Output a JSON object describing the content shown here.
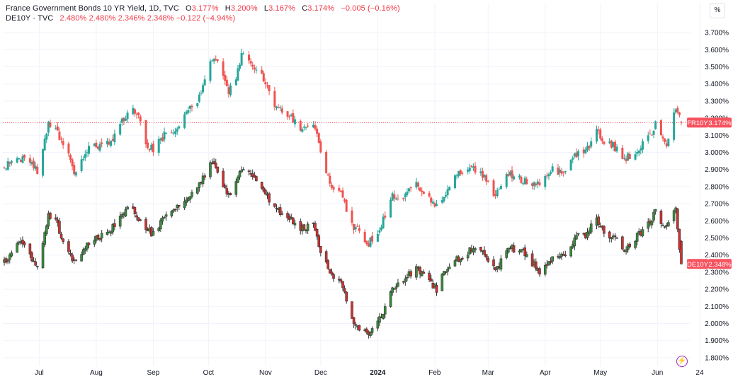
{
  "legend": {
    "series1_name": "France Government Bonds 10 YR Yield, 1D, TVC",
    "series1_ohlc": [
      {
        "k": "O",
        "v": "3.177%"
      },
      {
        "k": "H",
        "v": "3.200%"
      },
      {
        "k": "L",
        "v": "3.167%"
      },
      {
        "k": "C",
        "v": "3.174%"
      }
    ],
    "series1_change": "−0.005 (−0.16%)",
    "series2_name": "DE10Y · TVC",
    "series2_values": "2.480%  2.480%  2.346%  2.348%  −0.122 (−4.94%)"
  },
  "controls": {
    "percent_label": "%",
    "bolt_icon": "lightning-icon"
  },
  "colors": {
    "up": "#26a69a",
    "down": "#ef5350",
    "grid": "#f0f3fa",
    "axis_text": "#131722",
    "price_line": "#f7525f"
  },
  "chart_data": {
    "type": "candlestick",
    "y_axis": {
      "min": 1.75,
      "max": 3.75,
      "ticks": [
        "1.800%",
        "1.900%",
        "2.000%",
        "2.100%",
        "2.200%",
        "2.300%",
        "2.400%",
        "2.500%",
        "2.600%",
        "2.700%",
        "2.800%",
        "2.900%",
        "3.000%",
        "3.100%",
        "3.200%",
        "3.300%",
        "3.400%",
        "3.500%",
        "3.600%",
        "3.700%"
      ]
    },
    "x_axis": {
      "labels": [
        "Jul",
        "Aug",
        "Sep",
        "Oct",
        "Nov",
        "Dec",
        "2024",
        "Feb",
        "Mar",
        "Apr",
        "May",
        "Jun",
        "24"
      ]
    },
    "series": [
      {
        "name": "FR10Y",
        "last_label": "3.174%",
        "last_value": 3.174,
        "color_up": "#26a69a",
        "color_down": "#ef5350",
        "anchors": [
          [
            "2023-06-12",
            2.92
          ],
          [
            "2023-06-20",
            2.97
          ],
          [
            "2023-06-26",
            2.95
          ],
          [
            "2023-07-01",
            2.88
          ],
          [
            "2023-07-06",
            3.18
          ],
          [
            "2023-07-10",
            3.13
          ],
          [
            "2023-07-14",
            3.06
          ],
          [
            "2023-07-20",
            2.88
          ],
          [
            "2023-07-27",
            3.02
          ],
          [
            "2023-08-02",
            3.04
          ],
          [
            "2023-08-09",
            3.05
          ],
          [
            "2023-08-15",
            3.18
          ],
          [
            "2023-08-21",
            3.25
          ],
          [
            "2023-08-25",
            3.18
          ],
          [
            "2023-08-28",
            3.05
          ],
          [
            "2023-09-01",
            3.02
          ],
          [
            "2023-09-07",
            3.1
          ],
          [
            "2023-09-14",
            3.14
          ],
          [
            "2023-09-21",
            3.25
          ],
          [
            "2023-09-27",
            3.34
          ],
          [
            "2023-10-03",
            3.55
          ],
          [
            "2023-10-06",
            3.52
          ],
          [
            "2023-10-12",
            3.36
          ],
          [
            "2023-10-16",
            3.42
          ],
          [
            "2023-10-19",
            3.58
          ],
          [
            "2023-10-24",
            3.5
          ],
          [
            "2023-10-31",
            3.43
          ],
          [
            "2023-11-06",
            3.27
          ],
          [
            "2023-11-13",
            3.22
          ],
          [
            "2023-11-20",
            3.14
          ],
          [
            "2023-11-27",
            3.17
          ],
          [
            "2023-12-01",
            3.02
          ],
          [
            "2023-12-06",
            2.8
          ],
          [
            "2023-12-12",
            2.76
          ],
          [
            "2023-12-18",
            2.58
          ],
          [
            "2023-12-27",
            2.47
          ],
          [
            "2024-01-03",
            2.57
          ],
          [
            "2024-01-08",
            2.74
          ],
          [
            "2024-01-15",
            2.75
          ],
          [
            "2024-01-22",
            2.82
          ],
          [
            "2024-01-26",
            2.76
          ],
          [
            "2024-02-02",
            2.68
          ],
          [
            "2024-02-08",
            2.78
          ],
          [
            "2024-02-14",
            2.88
          ],
          [
            "2024-02-22",
            2.9
          ],
          [
            "2024-02-27",
            2.87
          ],
          [
            "2024-03-01",
            2.82
          ],
          [
            "2024-03-05",
            2.74
          ],
          [
            "2024-03-12",
            2.87
          ],
          [
            "2024-03-19",
            2.84
          ],
          [
            "2024-03-25",
            2.81
          ],
          [
            "2024-03-29",
            2.82
          ],
          [
            "2024-04-05",
            2.9
          ],
          [
            "2024-04-11",
            2.88
          ],
          [
            "2024-04-17",
            2.99
          ],
          [
            "2024-04-23",
            3.0
          ],
          [
            "2024-04-29",
            3.12
          ],
          [
            "2024-05-03",
            3.06
          ],
          [
            "2024-05-08",
            3.04
          ],
          [
            "2024-05-14",
            2.96
          ],
          [
            "2024-05-20",
            3.0
          ],
          [
            "2024-05-27",
            3.08
          ],
          [
            "2024-05-31",
            3.16
          ],
          [
            "2024-06-06",
            3.04
          ],
          [
            "2024-06-11",
            3.26
          ],
          [
            "2024-06-14",
            3.174
          ]
        ]
      },
      {
        "name": "DE10Y",
        "last_label": "2.348%",
        "last_value": 2.348,
        "color_up": "#388e3c",
        "color_down": "#d32f2f",
        "anchors": [
          [
            "2023-06-12",
            2.36
          ],
          [
            "2023-06-20",
            2.48
          ],
          [
            "2023-06-26",
            2.4
          ],
          [
            "2023-07-01",
            2.32
          ],
          [
            "2023-07-06",
            2.64
          ],
          [
            "2023-07-10",
            2.6
          ],
          [
            "2023-07-14",
            2.48
          ],
          [
            "2023-07-20",
            2.35
          ],
          [
            "2023-07-27",
            2.46
          ],
          [
            "2023-08-02",
            2.5
          ],
          [
            "2023-08-09",
            2.55
          ],
          [
            "2023-08-15",
            2.65
          ],
          [
            "2023-08-21",
            2.68
          ],
          [
            "2023-08-25",
            2.6
          ],
          [
            "2023-08-28",
            2.55
          ],
          [
            "2023-09-01",
            2.52
          ],
          [
            "2023-09-07",
            2.62
          ],
          [
            "2023-09-14",
            2.68
          ],
          [
            "2023-09-21",
            2.74
          ],
          [
            "2023-09-27",
            2.82
          ],
          [
            "2023-10-03",
            2.96
          ],
          [
            "2023-10-06",
            2.88
          ],
          [
            "2023-10-12",
            2.74
          ],
          [
            "2023-10-16",
            2.82
          ],
          [
            "2023-10-19",
            2.9
          ],
          [
            "2023-10-24",
            2.86
          ],
          [
            "2023-10-31",
            2.78
          ],
          [
            "2023-11-06",
            2.67
          ],
          [
            "2023-11-13",
            2.62
          ],
          [
            "2023-11-20",
            2.56
          ],
          [
            "2023-11-27",
            2.57
          ],
          [
            "2023-12-01",
            2.42
          ],
          [
            "2023-12-06",
            2.28
          ],
          [
            "2023-12-12",
            2.24
          ],
          [
            "2023-12-18",
            2.02
          ],
          [
            "2023-12-27",
            1.93
          ],
          [
            "2024-01-03",
            2.05
          ],
          [
            "2024-01-08",
            2.18
          ],
          [
            "2024-01-15",
            2.26
          ],
          [
            "2024-01-22",
            2.32
          ],
          [
            "2024-01-26",
            2.28
          ],
          [
            "2024-02-02",
            2.2
          ],
          [
            "2024-02-08",
            2.34
          ],
          [
            "2024-02-14",
            2.38
          ],
          [
            "2024-02-22",
            2.44
          ],
          [
            "2024-02-27",
            2.41
          ],
          [
            "2024-03-01",
            2.38
          ],
          [
            "2024-03-05",
            2.3
          ],
          [
            "2024-03-12",
            2.44
          ],
          [
            "2024-03-19",
            2.43
          ],
          [
            "2024-03-25",
            2.35
          ],
          [
            "2024-03-29",
            2.3
          ],
          [
            "2024-04-05",
            2.38
          ],
          [
            "2024-04-11",
            2.4
          ],
          [
            "2024-04-17",
            2.5
          ],
          [
            "2024-04-23",
            2.52
          ],
          [
            "2024-04-29",
            2.6
          ],
          [
            "2024-05-03",
            2.53
          ],
          [
            "2024-05-08",
            2.5
          ],
          [
            "2024-05-14",
            2.44
          ],
          [
            "2024-05-20",
            2.5
          ],
          [
            "2024-05-27",
            2.58
          ],
          [
            "2024-05-31",
            2.66
          ],
          [
            "2024-06-06",
            2.55
          ],
          [
            "2024-06-11",
            2.66
          ],
          [
            "2024-06-14",
            2.348
          ]
        ]
      }
    ],
    "grid": true,
    "legend_position": "top-left"
  }
}
